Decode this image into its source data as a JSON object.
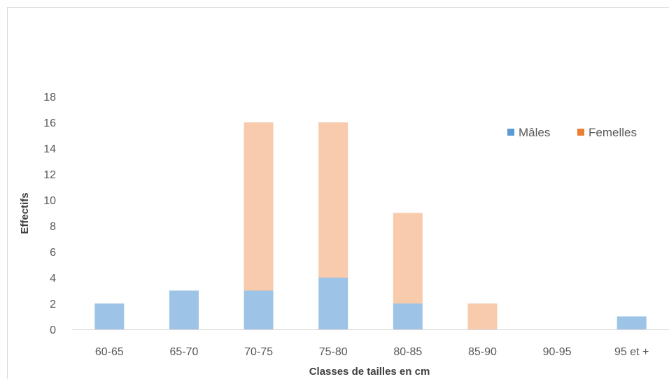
{
  "chart_data": {
    "type": "bar",
    "stacked": true,
    "categories": [
      "60-65",
      "65-70",
      "70-75",
      "75-80",
      "80-85",
      "85-90",
      "90-95",
      "95 et +"
    ],
    "series": [
      {
        "name": "Mâles",
        "values": [
          2,
          3,
          3,
          4,
          2,
          0,
          0,
          1
        ],
        "color": "#9dc3e6"
      },
      {
        "name": "Femelles",
        "values": [
          0,
          0,
          13,
          12,
          7,
          2,
          0,
          0
        ],
        "color": "#f8cbad"
      }
    ],
    "title": "",
    "xlabel": "Classes de tailles en cm",
    "ylabel": "Effectifs",
    "ylim": [
      0,
      18
    ],
    "yticks": [
      0,
      2,
      4,
      6,
      8,
      10,
      12,
      14,
      16,
      18
    ],
    "grid": false,
    "legend": "top-right",
    "legend_colors": {
      "Mâles": "#5b9bd5",
      "Femelles": "#ed7d31"
    }
  }
}
